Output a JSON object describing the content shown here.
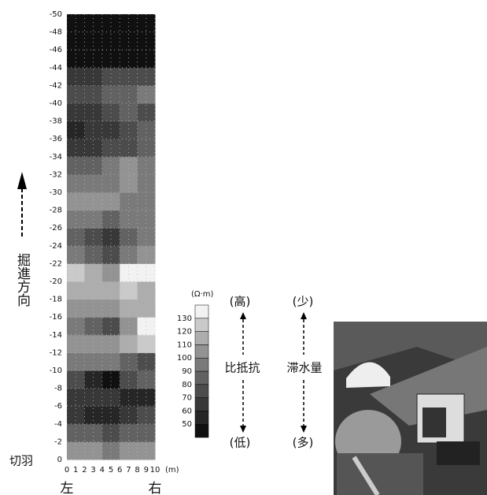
{
  "chart_data": {
    "type": "heatmap",
    "x": [
      1,
      3,
      5,
      7,
      9
    ],
    "y": [
      -1,
      -3,
      -5,
      -7,
      -9,
      -11,
      -13,
      -15,
      -17,
      -19,
      -21,
      -23,
      -25,
      -27,
      -29,
      -31,
      -33,
      -35,
      -37,
      -39,
      -41,
      -43,
      -45,
      -47,
      -49
    ],
    "values": [
      [
        100,
        100,
        90,
        100,
        100
      ],
      [
        80,
        80,
        70,
        80,
        80
      ],
      [
        60,
        50,
        50,
        60,
        70
      ],
      [
        60,
        60,
        60,
        50,
        50
      ],
      [
        70,
        50,
        45,
        70,
        80
      ],
      [
        90,
        90,
        90,
        80,
        70
      ],
      [
        100,
        100,
        100,
        110,
        120
      ],
      [
        90,
        80,
        70,
        100,
        130
      ],
      [
        100,
        100,
        100,
        110,
        110
      ],
      [
        110,
        110,
        110,
        120,
        110
      ],
      [
        120,
        110,
        100,
        130,
        140
      ],
      [
        90,
        80,
        70,
        90,
        100
      ],
      [
        80,
        70,
        60,
        80,
        90
      ],
      [
        90,
        90,
        80,
        90,
        90
      ],
      [
        100,
        100,
        100,
        90,
        90
      ],
      [
        90,
        90,
        90,
        100,
        90
      ],
      [
        80,
        80,
        90,
        100,
        90
      ],
      [
        60,
        60,
        70,
        70,
        80
      ],
      [
        50,
        60,
        60,
        70,
        80
      ],
      [
        60,
        60,
        70,
        80,
        70
      ],
      [
        70,
        70,
        80,
        80,
        90
      ],
      [
        60,
        60,
        70,
        70,
        70
      ],
      [
        45,
        45,
        45,
        45,
        45
      ],
      [
        45,
        45,
        45,
        45,
        45
      ],
      [
        45,
        45,
        45,
        45,
        45
      ]
    ],
    "xlim": [
      0,
      10
    ],
    "xticks": [
      0,
      1,
      2,
      3,
      4,
      5,
      6,
      7,
      8,
      9,
      10
    ],
    "ylim": [
      0,
      -50
    ],
    "yticks": [
      0,
      -2,
      -4,
      -6,
      -8,
      -10,
      -12,
      -14,
      -16,
      -18,
      -20,
      -22,
      -24,
      -26,
      -28,
      -30,
      -32,
      -34,
      -36,
      -38,
      -40,
      -42,
      -44,
      -46,
      -48,
      -50
    ],
    "grid": true,
    "x_unit": "(m)",
    "x_end_labels": [
      "左",
      "右"
    ],
    "face_label": "切羽",
    "direction_label": "掘進方向",
    "colorbar_label": "(Ω·m)",
    "color_levels": [
      50,
      60,
      70,
      80,
      90,
      100,
      110,
      120,
      130
    ],
    "colors": [
      "#101010",
      "#262626",
      "#383838",
      "#4c4c4c",
      "#626262",
      "#7a7a7a",
      "#939393",
      "#adadad",
      "#cacaca",
      "#f2f2f2"
    ],
    "annotations": {
      "resistivity": {
        "high": "(高)",
        "label": "比抵抗",
        "low": "(低)"
      },
      "water": {
        "low": "(少)",
        "label": "滞水量",
        "high": "(多)"
      }
    }
  }
}
